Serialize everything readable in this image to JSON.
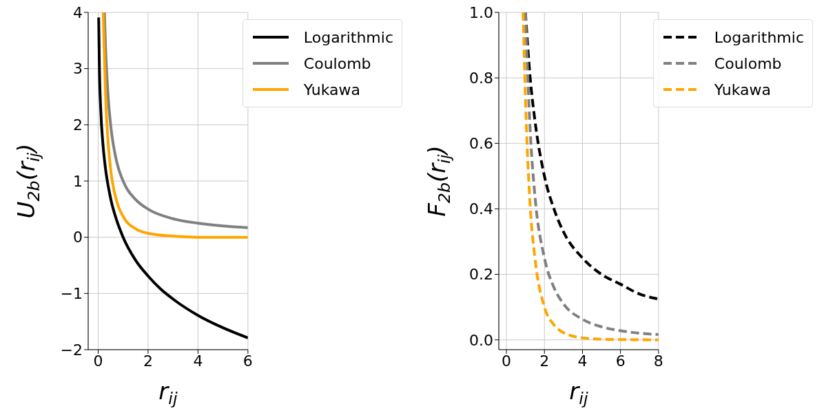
{
  "chart_data": [
    {
      "type": "line",
      "xlabel": "r$_{ij}$",
      "ylabel": "U$_{2b}$(r$_{ij}$)",
      "xlim": [
        -0.4,
        6
      ],
      "xticks": [
        0,
        2,
        4,
        6
      ],
      "ylim": [
        -2,
        4
      ],
      "yticks": [
        {
          "value": -2,
          "label": "−2"
        },
        {
          "value": -1,
          "label": "−1"
        },
        0,
        1,
        2,
        3,
        4
      ],
      "grid": true,
      "legend": "top right",
      "marker": "none",
      "line_style": "solid",
      "series": [
        {
          "name": "Logarithmic",
          "color": "#000000",
          "x": [
            0.02,
            0.05,
            0.1,
            0.2,
            0.3,
            0.5,
            0.75,
            1,
            1.5,
            2,
            2.5,
            3,
            4,
            5,
            6
          ],
          "values": [
            3.91,
            3.0,
            2.3,
            1.61,
            1.2,
            0.69,
            0.29,
            0,
            -0.41,
            -0.69,
            -0.92,
            -1.1,
            -1.39,
            -1.61,
            -1.79
          ]
        },
        {
          "name": "Coulomb",
          "color": "#808080",
          "x": [
            0.25,
            0.3,
            0.4,
            0.5,
            0.75,
            1,
            1.5,
            2,
            3,
            4,
            5,
            6
          ],
          "values": [
            4,
            3.33,
            2.5,
            2,
            1.33,
            1,
            0.67,
            0.5,
            0.33,
            0.25,
            0.2,
            0.17
          ]
        },
        {
          "name": "Yukawa",
          "color": "#ffa500",
          "x": [
            0.2,
            0.3,
            0.4,
            0.5,
            0.75,
            1,
            1.5,
            2,
            3,
            4,
            6
          ],
          "values": [
            4,
            2.47,
            1.68,
            1.21,
            0.63,
            0.37,
            0.15,
            0.07,
            0.02,
            0.0,
            0
          ]
        }
      ]
    },
    {
      "type": "line",
      "xlabel": "r$_{ij}$",
      "ylabel": "F$_{2b}$(r$_{ij}$)",
      "xlim": [
        -0.4,
        8
      ],
      "xticks": [
        0,
        2,
        4,
        6,
        8
      ],
      "ylim": [
        -0.03,
        1.0
      ],
      "yticks": [
        {
          "value": 0,
          "label": "0.0"
        },
        0.2,
        0.4,
        0.6,
        0.8,
        {
          "value": 1,
          "label": "1.0"
        }
      ],
      "grid": true,
      "legend": "top right",
      "marker": "none",
      "line_style": "dashed",
      "series": [
        {
          "name": "Logarithmic",
          "color": "#000000",
          "x": [
            1,
            1.25,
            1.5,
            2,
            2.5,
            3,
            4,
            5,
            6,
            7,
            8
          ],
          "values": [
            1,
            0.8,
            0.67,
            0.5,
            0.4,
            0.33,
            0.25,
            0.2,
            0.17,
            0.14,
            0.125
          ]
        },
        {
          "name": "Coulomb",
          "color": "#808080",
          "x": [
            1,
            1.25,
            1.5,
            2,
            2.5,
            3,
            4,
            5,
            6,
            8
          ],
          "values": [
            1,
            0.64,
            0.44,
            0.25,
            0.16,
            0.11,
            0.063,
            0.04,
            0.028,
            0.016
          ]
        },
        {
          "name": "Yukawa",
          "color": "#ffa500",
          "x": [
            0.88,
            1,
            1.25,
            1.5,
            2,
            2.5,
            3,
            4,
            5,
            8
          ],
          "values": [
            1,
            0.74,
            0.41,
            0.25,
            0.1,
            0.046,
            0.022,
            0.006,
            0.002,
            0
          ]
        }
      ]
    }
  ]
}
